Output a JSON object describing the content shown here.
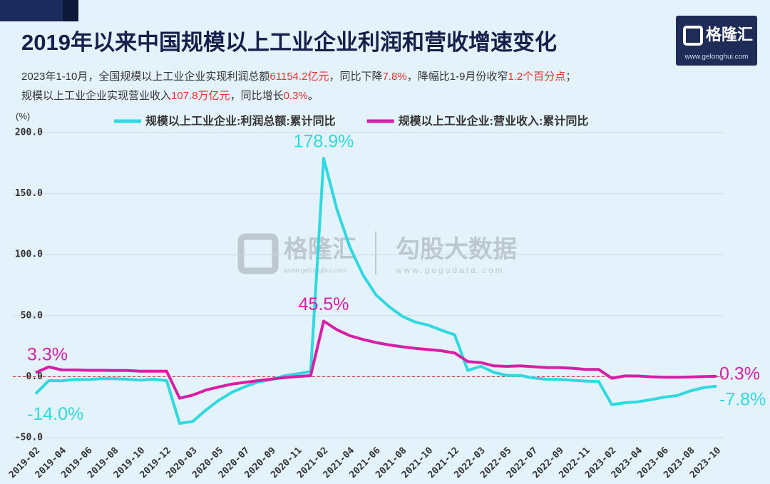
{
  "header": {
    "logo": "格隆汇",
    "logo_url": "www.gelonghui.com"
  },
  "watermark": {
    "brand": "格隆汇",
    "brand_url": "www.gelonghui.com",
    "partner": "勾股大数据",
    "partner_url": "www.gogudata.com"
  },
  "subtitle_lines": [
    {
      "segments": [
        {
          "text": "2023年1-10月，全国规模以上工业企业实现利润总额",
          "color": "#333333"
        },
        {
          "text": "61154.2亿元",
          "color": "#e8322e"
        },
        {
          "text": "，同比下降",
          "color": "#333333"
        },
        {
          "text": "7.8%",
          "color": "#e8322e"
        },
        {
          "text": "，降幅比1-9月份收窄",
          "color": "#333333"
        },
        {
          "text": "1.2个百分点",
          "color": "#e8322e"
        },
        {
          "text": "；",
          "color": "#333333"
        }
      ]
    },
    {
      "segments": [
        {
          "text": "规模以上工业企业实现营业收入",
          "color": "#333333"
        },
        {
          "text": "107.8万亿元",
          "color": "#e8322e"
        },
        {
          "text": "，同比增长",
          "color": "#333333"
        },
        {
          "text": "0.3%",
          "color": "#e8322e"
        },
        {
          "text": "。",
          "color": "#333333"
        }
      ]
    }
  ],
  "chart_data": {
    "type": "line",
    "title": "2019年以来中国规模以上工业企业利润和营收增速变化",
    "y_unit_label": "(%)",
    "legend": "top",
    "grid": true,
    "ylim": [
      -50,
      200
    ],
    "yticks": [
      {
        "value": -50,
        "label": "-50.0"
      },
      {
        "value": 0,
        "label": "0.0"
      },
      {
        "value": 50,
        "label": "50.0"
      },
      {
        "value": 100,
        "label": "100.0"
      },
      {
        "value": 150,
        "label": "150.0"
      },
      {
        "value": 200,
        "label": "200.0"
      }
    ],
    "categories": [
      "2019-02",
      null,
      "2019-04",
      null,
      "2019-06",
      null,
      "2019-08",
      null,
      "2019-10",
      null,
      "2019-12",
      null,
      "2020-03",
      null,
      "2020-05",
      null,
      "2020-07",
      null,
      "2020-09",
      null,
      "2020-11",
      null,
      "2021-02",
      null,
      "2021-04",
      null,
      "2021-06",
      null,
      "2021-08",
      null,
      "2021-10",
      null,
      "2021-12",
      null,
      "2022-03",
      null,
      "2022-05",
      null,
      "2022-07",
      null,
      "2022-09",
      null,
      "2022-11",
      null,
      "2023-02",
      null,
      "2023-04",
      null,
      "2023-06",
      null,
      "2023-08",
      null,
      "2023-10"
    ],
    "series": [
      {
        "name": "规模以上工业企业:利润总额:累计同比",
        "color": "#2fd9df",
        "values": [
          -14.0,
          -3.3,
          -3.4,
          -2.3,
          -2.4,
          -1.7,
          -1.7,
          -2.1,
          -2.9,
          -2.1,
          -3.3,
          -38.3,
          -36.7,
          -27.4,
          -19.3,
          -12.8,
          -8.1,
          -4.4,
          -2.4,
          0.7,
          2.4,
          4.1,
          178.9,
          137.3,
          106.0,
          83.4,
          66.9,
          57.3,
          49.5,
          44.7,
          42.2,
          38.0,
          34.3,
          5.0,
          8.5,
          3.5,
          1.0,
          1.0,
          -1.1,
          -2.1,
          -2.3,
          -3.0,
          -3.6,
          -4.0,
          -22.9,
          -21.4,
          -20.6,
          -18.8,
          -16.8,
          -15.5,
          -11.7,
          -9.0,
          -7.8
        ],
        "value_labels": [
          "-14.0%",
          null,
          null,
          null,
          null,
          null,
          null,
          null,
          null,
          null,
          null,
          null,
          null,
          null,
          null,
          null,
          null,
          null,
          null,
          null,
          null,
          null,
          "178.9%",
          null,
          null,
          null,
          null,
          null,
          null,
          null,
          null,
          null,
          null,
          null,
          null,
          null,
          null,
          null,
          null,
          null,
          null,
          null,
          null,
          null,
          null,
          null,
          null,
          null,
          null,
          null,
          null,
          null,
          "-7.8%"
        ]
      },
      {
        "name": "规模以上工业企业:营业收入:累计同比",
        "color": "#d61fa6",
        "values": [
          3.3,
          8.0,
          5.5,
          5.5,
          5.2,
          5.2,
          5.0,
          5.0,
          4.5,
          4.5,
          4.5,
          -17.7,
          -15.1,
          -11.0,
          -8.4,
          -6.1,
          -4.7,
          -3.3,
          -2.0,
          -0.8,
          0.1,
          0.8,
          45.5,
          38.5,
          33.5,
          30.5,
          27.9,
          26.0,
          24.5,
          23.2,
          22.2,
          21.2,
          19.4,
          12.4,
          11.5,
          8.8,
          8.4,
          8.8,
          8.1,
          7.5,
          7.4,
          6.9,
          5.9,
          5.9,
          -1.3,
          0.6,
          0.5,
          -0.1,
          -0.4,
          -0.5,
          -0.3,
          0.1,
          0.3
        ],
        "value_labels": [
          "3.3%",
          null,
          null,
          null,
          null,
          null,
          null,
          null,
          null,
          null,
          null,
          null,
          null,
          null,
          null,
          null,
          null,
          null,
          null,
          null,
          null,
          null,
          "45.5%",
          null,
          null,
          null,
          null,
          null,
          null,
          null,
          null,
          null,
          null,
          null,
          null,
          null,
          null,
          null,
          null,
          null,
          null,
          null,
          null,
          null,
          null,
          null,
          null,
          null,
          null,
          null,
          null,
          null,
          "0.3%"
        ]
      }
    ]
  }
}
